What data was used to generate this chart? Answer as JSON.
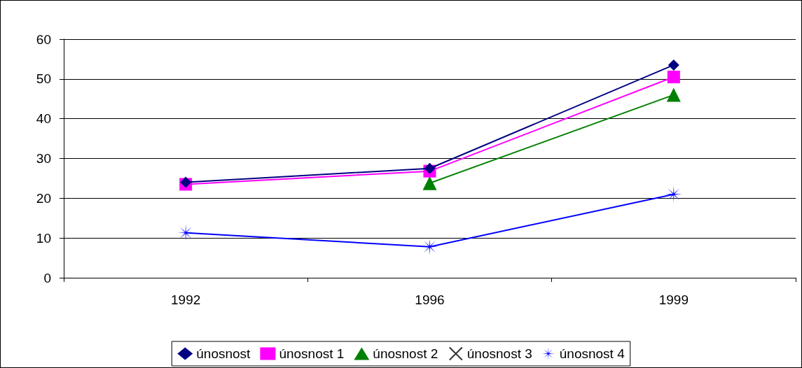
{
  "chart_data": {
    "type": "line",
    "categories": [
      "1992",
      "1996",
      "1999"
    ],
    "series": [
      {
        "name": "únosnost",
        "color": "#000080",
        "marker": "diamond",
        "values": [
          24,
          27.5,
          53.5
        ]
      },
      {
        "name": "únosnost 1",
        "color": "#ff00ff",
        "marker": "square",
        "values": [
          23.5,
          26.8,
          50.5
        ]
      },
      {
        "name": "únosnost 2",
        "color": "#008000",
        "marker": "triangle",
        "values": [
          null,
          23.8,
          46
        ]
      },
      {
        "name": "únosnost 3",
        "color": "#333333",
        "marker": "cross",
        "values": [
          null,
          null,
          null
        ]
      },
      {
        "name": "únosnost 4",
        "color": "#0000ff",
        "marker": "star",
        "values": [
          11.3,
          7.8,
          21
        ]
      }
    ],
    "ylim": [
      0,
      60
    ],
    "yticks": [
      0,
      10,
      20,
      30,
      40,
      50,
      60
    ],
    "grid": "y",
    "legend": "bottom",
    "line_style": "solid"
  }
}
